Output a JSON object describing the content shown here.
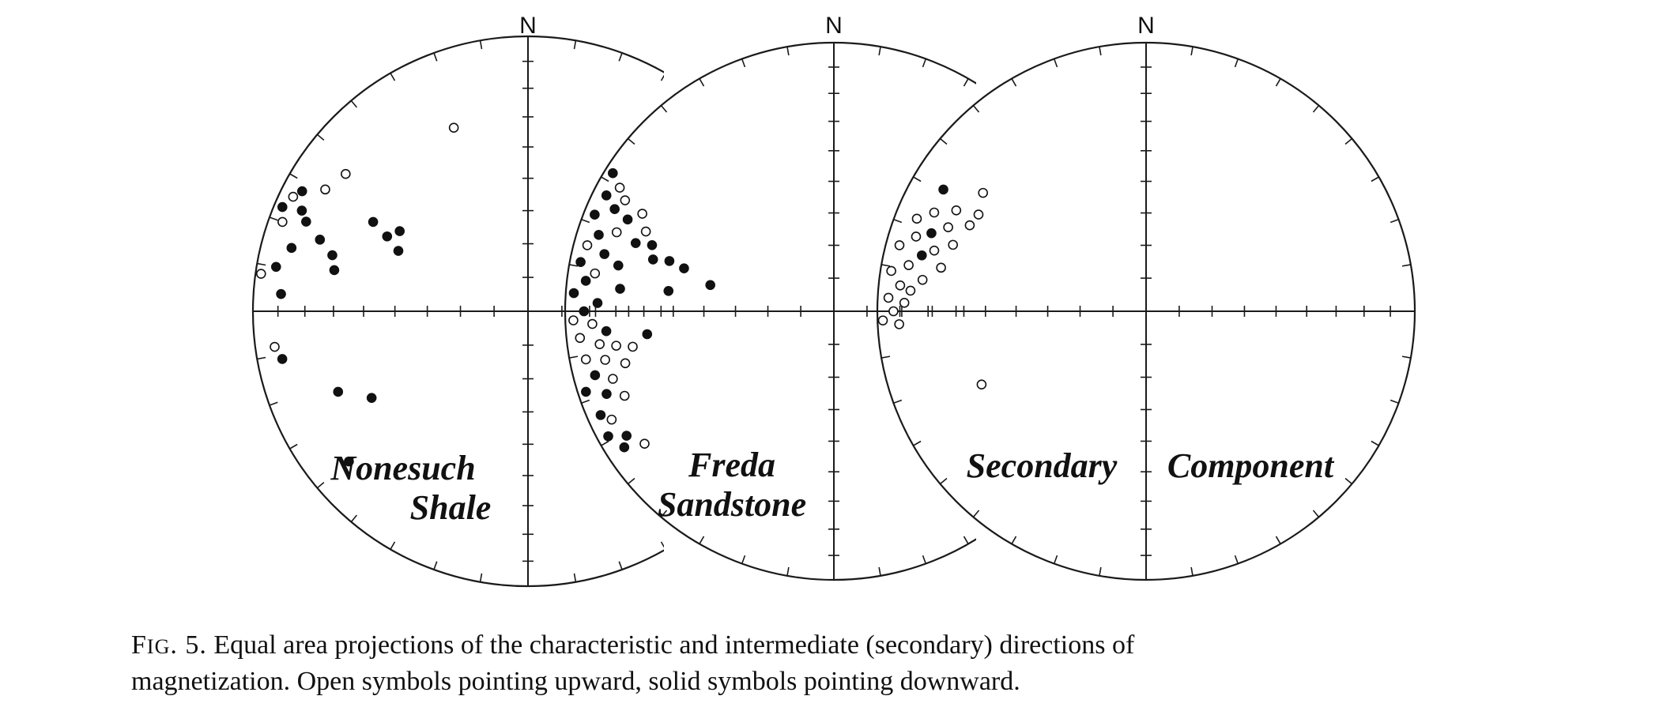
{
  "north_label": "N",
  "plots": [
    {
      "label_lines": [
        "Nonesuch",
        "Shale"
      ],
      "points": [
        {
          "az": 338,
          "r": 0.72,
          "filled": false
        },
        {
          "az": 307,
          "r": 0.83,
          "filled": false
        },
        {
          "az": 301,
          "r": 0.86,
          "filled": false
        },
        {
          "az": 298,
          "r": 0.93,
          "filled": true
        },
        {
          "az": 296,
          "r": 0.95,
          "filled": false
        },
        {
          "az": 294,
          "r": 0.9,
          "filled": true
        },
        {
          "az": 293,
          "r": 0.97,
          "filled": true
        },
        {
          "az": 292,
          "r": 0.87,
          "filled": true
        },
        {
          "az": 290,
          "r": 0.95,
          "filled": false
        },
        {
          "az": 289,
          "r": 0.8,
          "filled": true
        },
        {
          "az": 286,
          "r": 0.74,
          "filled": true
        },
        {
          "az": 300,
          "r": 0.65,
          "filled": true
        },
        {
          "az": 302,
          "r": 0.55,
          "filled": true
        },
        {
          "az": 298,
          "r": 0.58,
          "filled": true
        },
        {
          "az": 295,
          "r": 0.52,
          "filled": true
        },
        {
          "az": 285,
          "r": 0.89,
          "filled": true
        },
        {
          "az": 282,
          "r": 0.72,
          "filled": true
        },
        {
          "az": 280,
          "r": 0.93,
          "filled": true
        },
        {
          "az": 278,
          "r": 0.98,
          "filled": false
        },
        {
          "az": 274,
          "r": 0.9,
          "filled": true
        },
        {
          "az": 262,
          "r": 0.93,
          "filled": false
        },
        {
          "az": 259,
          "r": 0.91,
          "filled": true
        },
        {
          "az": 247,
          "r": 0.75,
          "filled": true
        },
        {
          "az": 241,
          "r": 0.65,
          "filled": true
        },
        {
          "az": 230,
          "r": 0.85,
          "filled": true
        }
      ]
    },
    {
      "label_lines": [
        "Freda",
        "Sandstone"
      ],
      "points": [
        {
          "az": 302,
          "r": 0.97,
          "filled": true
        },
        {
          "az": 300,
          "r": 0.92,
          "filled": false
        },
        {
          "az": 298,
          "r": 0.88,
          "filled": false
        },
        {
          "az": 297,
          "r": 0.95,
          "filled": true
        },
        {
          "az": 295,
          "r": 0.9,
          "filled": true
        },
        {
          "az": 294,
          "r": 0.84,
          "filled": true
        },
        {
          "az": 292,
          "r": 0.96,
          "filled": true
        },
        {
          "az": 290,
          "r": 0.86,
          "filled": false
        },
        {
          "az": 289,
          "r": 0.78,
          "filled": true
        },
        {
          "az": 288,
          "r": 0.92,
          "filled": true
        },
        {
          "az": 286,
          "r": 0.7,
          "filled": true
        },
        {
          "az": 285,
          "r": 0.95,
          "filled": false
        },
        {
          "az": 284,
          "r": 0.88,
          "filled": true
        },
        {
          "az": 282,
          "r": 0.82,
          "filled": true
        },
        {
          "az": 281,
          "r": 0.96,
          "filled": true
        },
        {
          "az": 279,
          "r": 0.9,
          "filled": false
        },
        {
          "az": 277,
          "r": 0.93,
          "filled": true
        },
        {
          "az": 276,
          "r": 0.8,
          "filled": true
        },
        {
          "az": 274,
          "r": 0.97,
          "filled": true
        },
        {
          "az": 272,
          "r": 0.88,
          "filled": true
        },
        {
          "az": 270,
          "r": 0.93,
          "filled": true
        },
        {
          "az": 268,
          "r": 0.97,
          "filled": false
        },
        {
          "az": 267,
          "r": 0.9,
          "filled": false
        },
        {
          "az": 265,
          "r": 0.85,
          "filled": true
        },
        {
          "az": 264,
          "r": 0.95,
          "filled": false
        },
        {
          "az": 262,
          "r": 0.88,
          "filled": false
        },
        {
          "az": 261,
          "r": 0.82,
          "filled": false
        },
        {
          "az": 259,
          "r": 0.94,
          "filled": false
        },
        {
          "az": 258,
          "r": 0.87,
          "filled": false
        },
        {
          "az": 256,
          "r": 0.8,
          "filled": false
        },
        {
          "az": 255,
          "r": 0.92,
          "filled": true
        },
        {
          "az": 253,
          "r": 0.86,
          "filled": false
        },
        {
          "az": 252,
          "r": 0.97,
          "filled": true
        },
        {
          "az": 250,
          "r": 0.9,
          "filled": true
        },
        {
          "az": 248,
          "r": 0.84,
          "filled": false
        },
        {
          "az": 246,
          "r": 0.95,
          "filled": true
        },
        {
          "az": 244,
          "r": 0.92,
          "filled": false
        },
        {
          "az": 241,
          "r": 0.96,
          "filled": true
        },
        {
          "az": 239,
          "r": 0.9,
          "filled": true
        },
        {
          "az": 237,
          "r": 0.93,
          "filled": true
        },
        {
          "az": 235,
          "r": 0.86,
          "filled": false
        },
        {
          "az": 290,
          "r": 0.72,
          "filled": true
        },
        {
          "az": 287,
          "r": 0.64,
          "filled": true
        },
        {
          "az": 286,
          "r": 0.58,
          "filled": true
        },
        {
          "az": 282,
          "r": 0.47,
          "filled": true
        },
        {
          "az": 277,
          "r": 0.62,
          "filled": true
        },
        {
          "az": 263,
          "r": 0.7,
          "filled": true
        },
        {
          "az": 260,
          "r": 0.76,
          "filled": false
        },
        {
          "az": 297,
          "r": 0.8,
          "filled": false
        },
        {
          "az": 293,
          "r": 0.76,
          "filled": false
        }
      ]
    },
    {
      "label_lines": [
        "Secondary",
        "Component"
      ],
      "points": [
        {
          "az": 301,
          "r": 0.88,
          "filled": true
        },
        {
          "az": 306,
          "r": 0.75,
          "filled": false
        },
        {
          "az": 300,
          "r": 0.72,
          "filled": false
        },
        {
          "az": 296,
          "r": 0.73,
          "filled": false
        },
        {
          "az": 298,
          "r": 0.8,
          "filled": false
        },
        {
          "az": 295,
          "r": 0.87,
          "filled": false
        },
        {
          "az": 292,
          "r": 0.92,
          "filled": false
        },
        {
          "az": 293,
          "r": 0.8,
          "filled": false
        },
        {
          "az": 290,
          "r": 0.85,
          "filled": true
        },
        {
          "az": 289,
          "r": 0.76,
          "filled": false
        },
        {
          "az": 288,
          "r": 0.9,
          "filled": false
        },
        {
          "az": 286,
          "r": 0.82,
          "filled": false
        },
        {
          "az": 285,
          "r": 0.95,
          "filled": false
        },
        {
          "az": 284,
          "r": 0.86,
          "filled": true
        },
        {
          "az": 282,
          "r": 0.78,
          "filled": false
        },
        {
          "az": 281,
          "r": 0.9,
          "filled": false
        },
        {
          "az": 279,
          "r": 0.96,
          "filled": false
        },
        {
          "az": 278,
          "r": 0.84,
          "filled": false
        },
        {
          "az": 276,
          "r": 0.92,
          "filled": false
        },
        {
          "az": 275,
          "r": 0.88,
          "filled": false
        },
        {
          "az": 273,
          "r": 0.96,
          "filled": false
        },
        {
          "az": 272,
          "r": 0.9,
          "filled": false
        },
        {
          "az": 270,
          "r": 0.94,
          "filled": false
        },
        {
          "az": 268,
          "r": 0.98,
          "filled": false
        },
        {
          "az": 267,
          "r": 0.92,
          "filled": false
        },
        {
          "az": 246,
          "r": 0.67,
          "filled": false
        }
      ]
    }
  ],
  "caption": {
    "prefix_first": "F",
    "prefix_rest": "IG",
    "prefix_end": ". 5.",
    "line1": "Equal area projections of the characteristic and intermediate (secondary) directions of",
    "line2": "magnetization. Open symbols pointing upward, solid symbols pointing downward."
  }
}
